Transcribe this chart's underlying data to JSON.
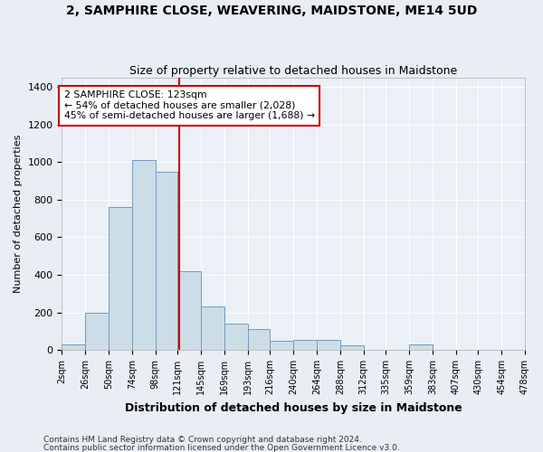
{
  "title": "2, SAMPHIRE CLOSE, WEAVERING, MAIDSTONE, ME14 5UD",
  "subtitle": "Size of property relative to detached houses in Maidstone",
  "xlabel": "Distribution of detached houses by size in Maidstone",
  "ylabel": "Number of detached properties",
  "bar_edges": [
    2,
    26,
    50,
    74,
    98,
    121,
    145,
    169,
    193,
    216,
    240,
    264,
    288,
    312,
    335,
    359,
    383,
    407,
    430,
    454,
    478
  ],
  "bar_heights": [
    28,
    200,
    760,
    1010,
    950,
    420,
    230,
    140,
    110,
    50,
    55,
    55,
    25,
    0,
    0,
    28,
    0,
    0,
    0,
    0
  ],
  "bar_color": "#ccdde8",
  "bar_edge_color": "#7799bb",
  "vline_x": 123,
  "vline_color": "#cc0000",
  "annotation_text": "2 SAMPHIRE CLOSE: 123sqm\n← 54% of detached houses are smaller (2,028)\n45% of semi-detached houses are larger (1,688) →",
  "annotation_box_color": "#ffffff",
  "annotation_box_edge": "#cc0000",
  "footer1": "Contains HM Land Registry data © Crown copyright and database right 2024.",
  "footer2": "Contains public sector information licensed under the Open Government Licence v3.0.",
  "bg_color": "#e8eef4",
  "plot_bg_color": "#eaf0f6",
  "ylim": [
    0,
    1450
  ],
  "yticks": [
    0,
    200,
    400,
    600,
    800,
    1000,
    1200,
    1400
  ],
  "tick_labels": [
    "2sqm",
    "26sqm",
    "50sqm",
    "74sqm",
    "98sqm",
    "121sqm",
    "145sqm",
    "169sqm",
    "193sqm",
    "216sqm",
    "240sqm",
    "264sqm",
    "288sqm",
    "312sqm",
    "335sqm",
    "359sqm",
    "383sqm",
    "407sqm",
    "430sqm",
    "454sqm",
    "478sqm"
  ]
}
